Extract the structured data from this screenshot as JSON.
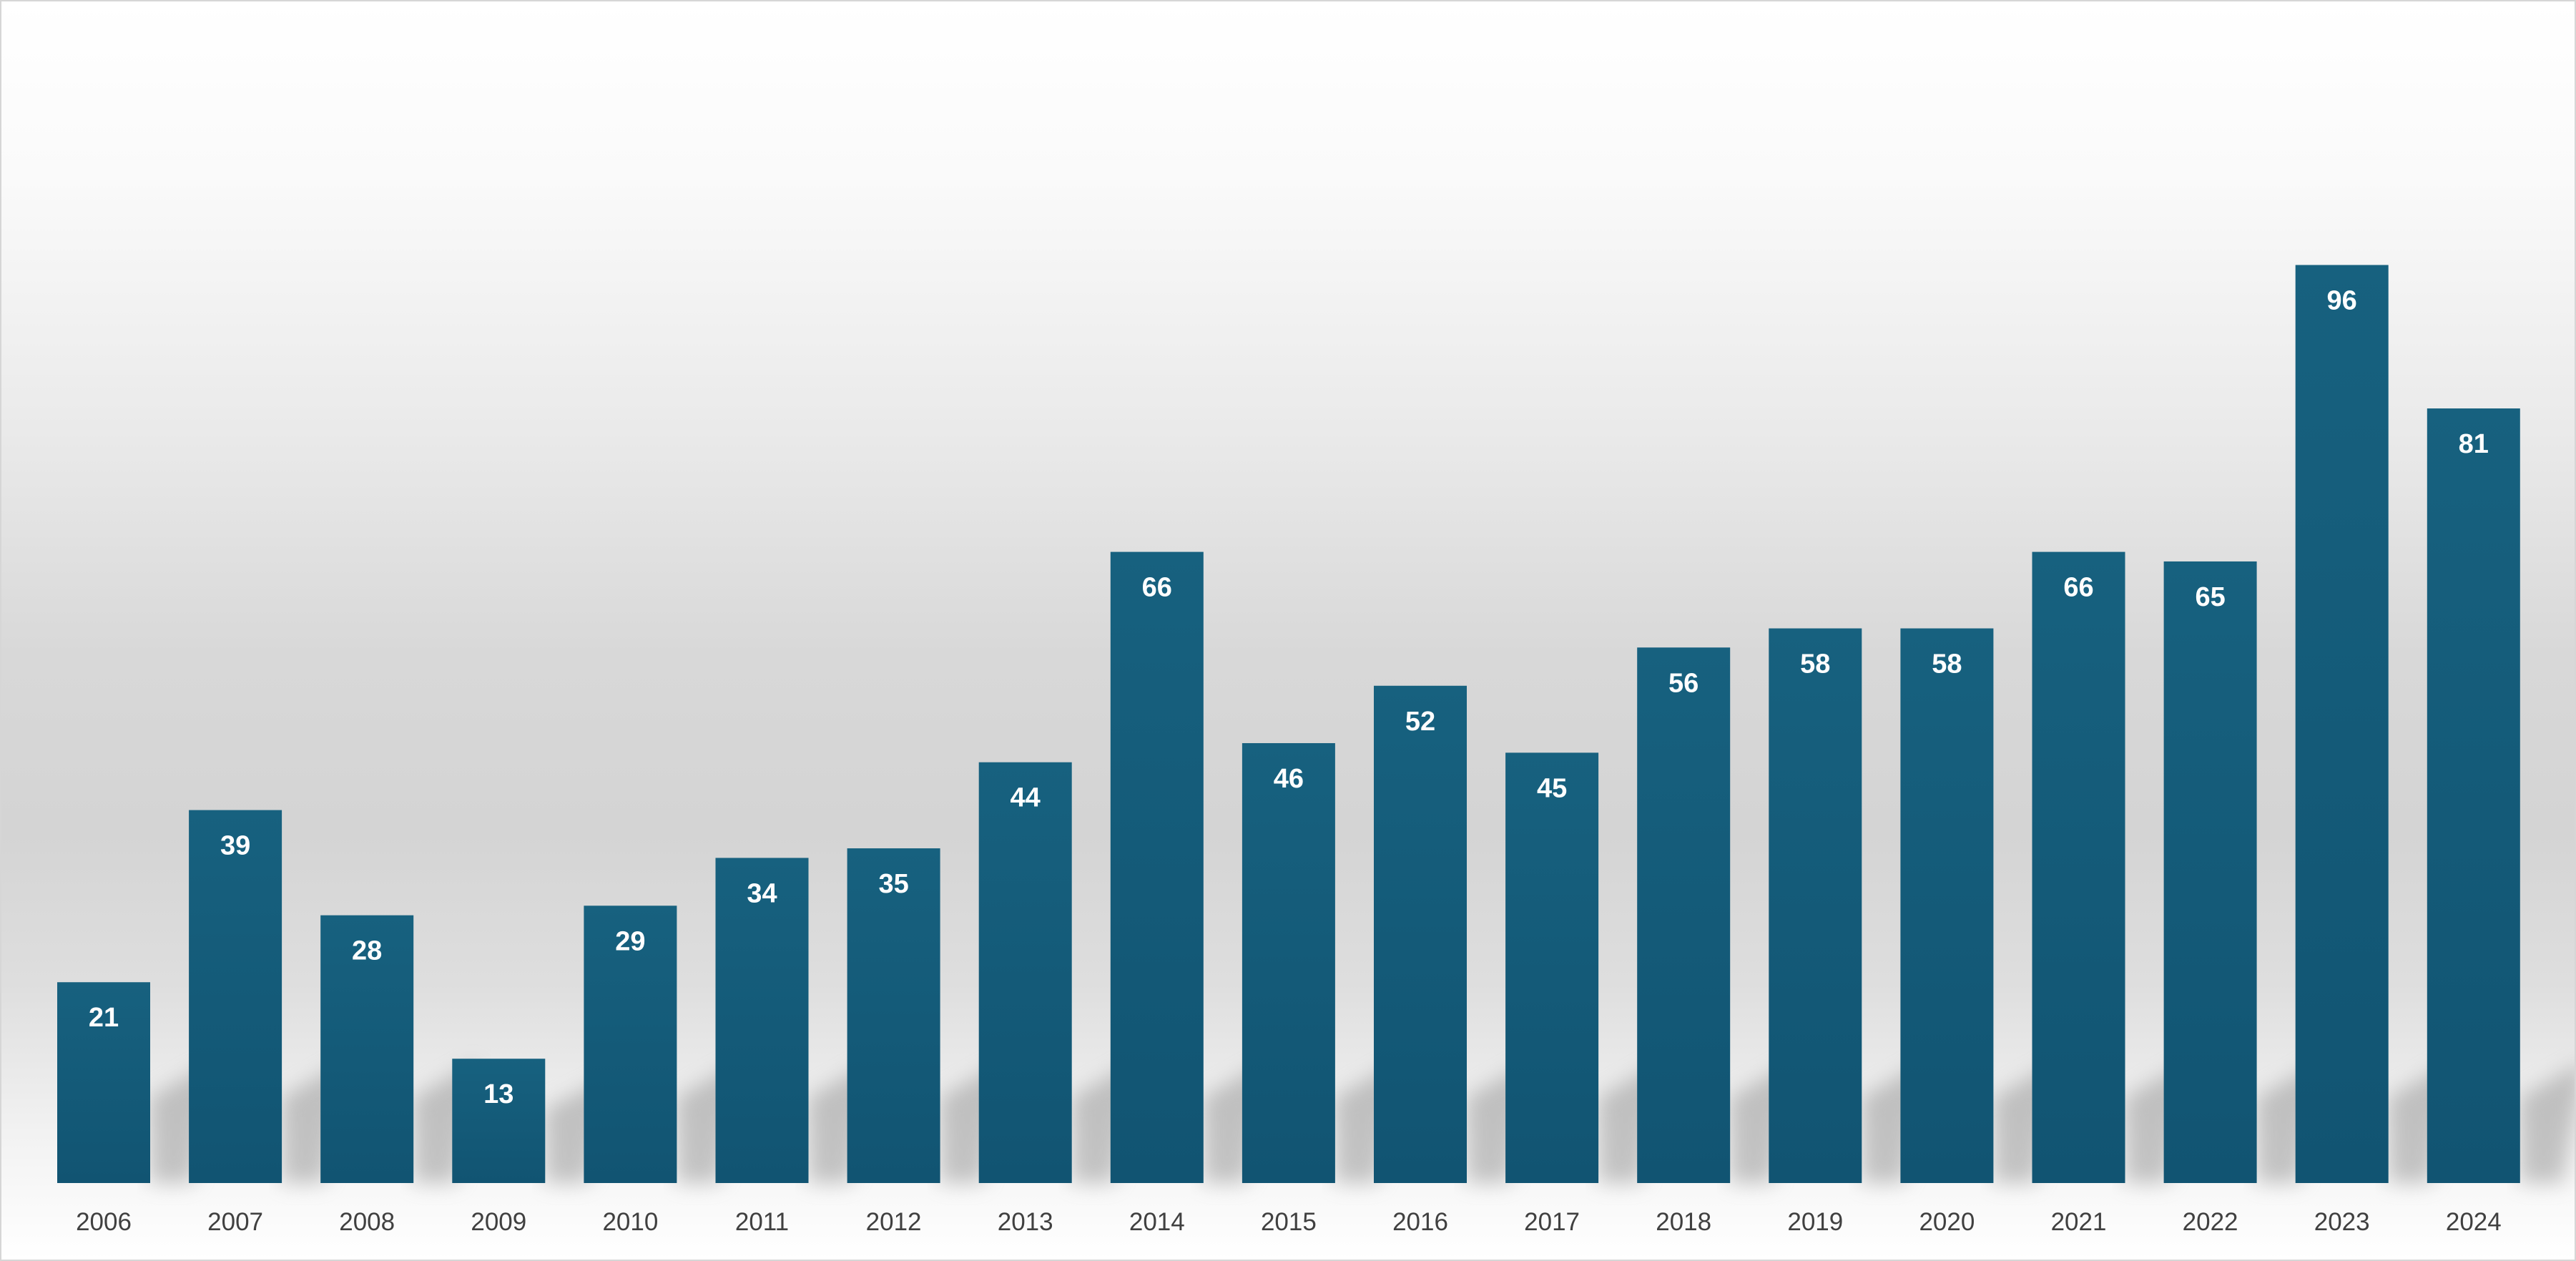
{
  "chart_data": {
    "type": "bar",
    "title": "",
    "xlabel": "",
    "ylabel": "",
    "categories": [
      "2006",
      "2007",
      "2008",
      "2009",
      "2010",
      "2011",
      "2012",
      "2013",
      "2014",
      "2015",
      "2016",
      "2017",
      "2018",
      "2019",
      "2020",
      "2021",
      "2022",
      "2023",
      "2024"
    ],
    "values": [
      21,
      39,
      28,
      13,
      29,
      34,
      35,
      44,
      66,
      46,
      52,
      45,
      56,
      58,
      58,
      66,
      65,
      96,
      81
    ],
    "ylim": [
      0,
      100
    ],
    "grid": false,
    "legend": "none",
    "data_labels": "inside-top",
    "colors": {
      "bar_top": "#17617f",
      "bar_bottom": "#115472",
      "label": "#ffffff",
      "tick": "#404040"
    }
  }
}
